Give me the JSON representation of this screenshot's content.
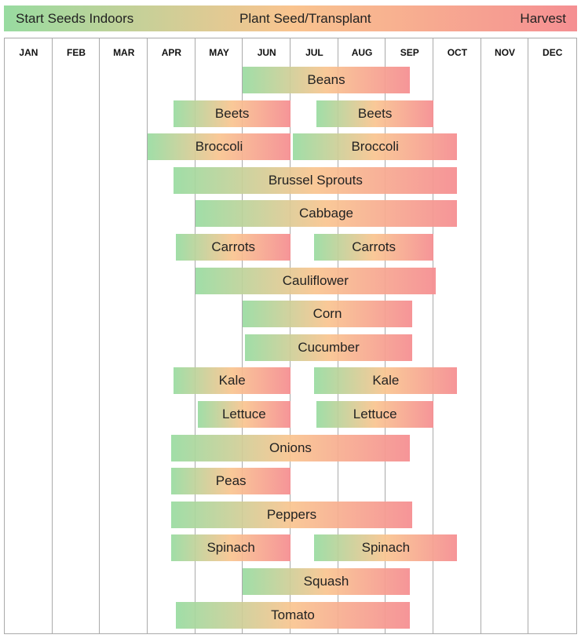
{
  "legend": {
    "start": "Start Seeds Indoors",
    "plant": "Plant Seed/Transplant",
    "harvest": "Harvest"
  },
  "colors": {
    "start": "#98dba0",
    "plant": "#f9c48f",
    "harvest": "#f58f92",
    "grid": "#aaaaaa"
  },
  "chart_data": {
    "type": "gantt",
    "x_unit": "month (0 = start of JAN, 12 = end of DEC)",
    "months": [
      "JAN",
      "FEB",
      "MAR",
      "APR",
      "MAY",
      "JUN",
      "JUL",
      "AUG",
      "SEP",
      "OCT",
      "NOV",
      "DEC"
    ],
    "rows": [
      {
        "crop": "Beans",
        "bars": [
          {
            "label": "Beans",
            "start": 5.0,
            "end": 8.5
          }
        ]
      },
      {
        "crop": "Beets",
        "bars": [
          {
            "label": "Beets",
            "start": 3.55,
            "end": 6.0
          },
          {
            "label": "Beets",
            "start": 6.55,
            "end": 9.0
          }
        ]
      },
      {
        "crop": "Broccoli",
        "bars": [
          {
            "label": "Broccoli",
            "start": 3.0,
            "end": 6.0
          },
          {
            "label": "Broccoli",
            "start": 6.05,
            "end": 9.5
          }
        ]
      },
      {
        "crop": "Brussel Sprouts",
        "bars": [
          {
            "label": "Brussel Sprouts",
            "start": 3.55,
            "end": 9.5
          }
        ]
      },
      {
        "crop": "Cabbage",
        "bars": [
          {
            "label": "Cabbage",
            "start": 4.0,
            "end": 9.5
          }
        ]
      },
      {
        "crop": "Carrots",
        "bars": [
          {
            "label": "Carrots",
            "start": 3.6,
            "end": 6.0
          },
          {
            "label": "Carrots",
            "start": 6.5,
            "end": 9.0
          }
        ]
      },
      {
        "crop": "Cauliflower",
        "bars": [
          {
            "label": "Cauliflower",
            "start": 4.0,
            "end": 9.05
          }
        ]
      },
      {
        "crop": "Corn",
        "bars": [
          {
            "label": "Corn",
            "start": 5.0,
            "end": 8.55
          }
        ]
      },
      {
        "crop": "Cucumber",
        "bars": [
          {
            "label": "Cucumber",
            "start": 5.05,
            "end": 8.55
          }
        ]
      },
      {
        "crop": "Kale",
        "bars": [
          {
            "label": "Kale",
            "start": 3.55,
            "end": 6.0
          },
          {
            "label": "Kale",
            "start": 6.5,
            "end": 9.5
          }
        ]
      },
      {
        "crop": "Lettuce",
        "bars": [
          {
            "label": "Lettuce",
            "start": 4.05,
            "end": 6.0
          },
          {
            "label": "Lettuce",
            "start": 6.55,
            "end": 9.0
          }
        ]
      },
      {
        "crop": "Onions",
        "bars": [
          {
            "label": "Onions",
            "start": 3.5,
            "end": 8.5
          }
        ]
      },
      {
        "crop": "Peas",
        "bars": [
          {
            "label": "Peas",
            "start": 3.5,
            "end": 6.0
          }
        ]
      },
      {
        "crop": "Peppers",
        "bars": [
          {
            "label": "Peppers",
            "start": 3.5,
            "end": 8.55
          }
        ]
      },
      {
        "crop": "Spinach",
        "bars": [
          {
            "label": "Spinach",
            "start": 3.5,
            "end": 6.0
          },
          {
            "label": "Spinach",
            "start": 6.5,
            "end": 9.5
          }
        ]
      },
      {
        "crop": "Squash",
        "bars": [
          {
            "label": "Squash",
            "start": 5.0,
            "end": 8.5
          }
        ]
      },
      {
        "crop": "Tomato",
        "bars": [
          {
            "label": "Tomato",
            "start": 3.6,
            "end": 8.5
          }
        ]
      }
    ]
  }
}
